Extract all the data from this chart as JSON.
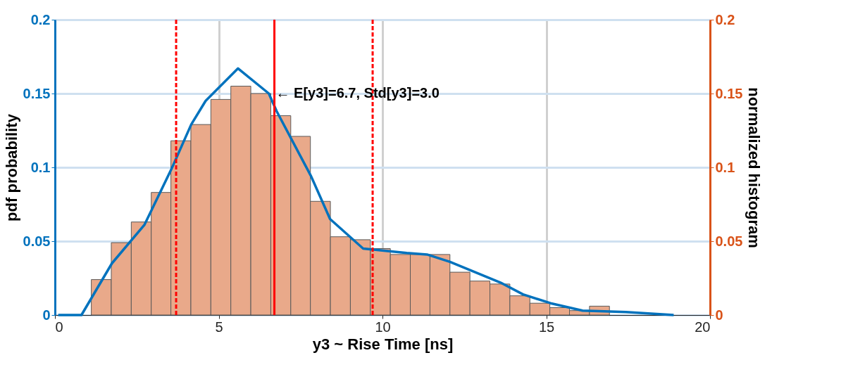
{
  "chart_data": {
    "type": "histogram",
    "xlabel": "y3 ~ Rise Time [ns]",
    "ylabel": "pdf probability",
    "y2label": "normalized histogram",
    "xlim": [
      0,
      20
    ],
    "xticks": [
      0,
      5,
      10,
      15,
      20
    ],
    "ylim": [
      0,
      0.2
    ],
    "yticks": [
      0,
      0.05,
      0.1,
      0.15,
      0.2
    ],
    "y2lim": [
      0,
      0.2
    ],
    "y2ticks": [
      0,
      0.05,
      0.1,
      0.15,
      0.2
    ],
    "grid": true,
    "series": [
      {
        "axis": "y2",
        "color": "#e9a98a",
        "bins": [
          1.11,
          1.72,
          2.33,
          2.94,
          3.54,
          4.15,
          4.76,
          5.37,
          5.98,
          6.59,
          7.2,
          7.8,
          8.41,
          9.02,
          9.63,
          10.24,
          10.85,
          11.45,
          12.06,
          12.67,
          13.28,
          13.89,
          14.5,
          15.11,
          15.71,
          16.32,
          16.93
        ],
        "values": [
          0.024,
          0.049,
          0.063,
          0.083,
          0.118,
          0.129,
          0.146,
          0.155,
          0.15,
          0.135,
          0.121,
          0.077,
          0.053,
          0.051,
          0.045,
          0.041,
          0.041,
          0.041,
          0.029,
          0.023,
          0.021,
          0.013,
          0.008,
          0.005,
          0.003,
          0.006
        ]
      },
      {
        "type": "line",
        "color": "#0072bd",
        "x": [
          0.1,
          0.81,
          1.74,
          2.73,
          3.56,
          4.16,
          4.6,
          5.59,
          6.53,
          6.77,
          7.82,
          8.4,
          9.41,
          10.74,
          11.36,
          12.06,
          13.6,
          14.29,
          15.13,
          16.11,
          17.43,
          18.89
        ],
        "values": [
          0,
          0,
          0.035,
          0.061,
          0.099,
          0.129,
          0.145,
          0.167,
          0.15,
          0.138,
          0.094,
          0.065,
          0.045,
          0.042,
          0.041,
          0.036,
          0.022,
          0.014,
          0.008,
          0.003,
          0.002,
          0
        ]
      }
    ],
    "ref_lines": [
      {
        "axis": "x",
        "value": 3.7,
        "color": "#ff0000",
        "line_style": "dashed"
      },
      {
        "axis": "x",
        "value": 6.7,
        "color": "#ff0000",
        "line_style": "solid"
      },
      {
        "axis": "x",
        "value": 9.7,
        "color": "#ff0000",
        "line_style": "dashed"
      }
    ],
    "annotations": [
      {
        "text": "← E[y3]=6.7, Std[y3]=3.0",
        "x": 6.7,
        "y": 0.15
      }
    ]
  }
}
